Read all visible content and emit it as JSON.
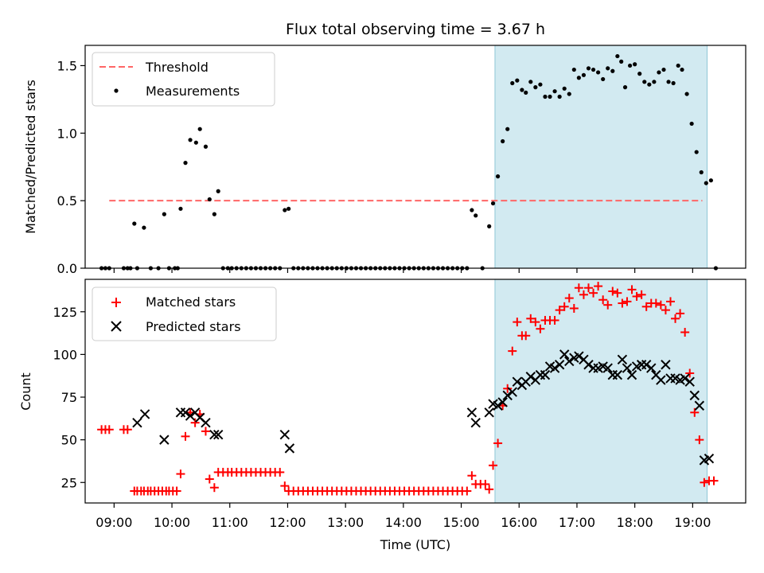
{
  "title": "Flux total observing time = 3.67 h",
  "colors": {
    "threshold": "#ff6666",
    "measurements": "#000000",
    "matched": "#ff0000",
    "predicted": "#000000",
    "shade": "#add8e6"
  },
  "x_ticks": [
    "09:00",
    "10:00",
    "11:00",
    "12:00",
    "13:00",
    "14:00",
    "15:00",
    "16:00",
    "17:00",
    "18:00",
    "19:00"
  ],
  "x_range": [
    "08:30",
    "19:55"
  ],
  "shaded_interval": [
    "15:35",
    "19:15"
  ],
  "top_panel": {
    "ylabel": "Matched/Predicted stars",
    "ylim": [
      0,
      1.65
    ],
    "yticks": [
      "0.0",
      "0.5",
      "1.0",
      "1.5"
    ],
    "legend": {
      "placement": "top-left",
      "threshold_label": "Threshold",
      "measurements_label": "Measurements"
    },
    "threshold": {
      "value": 0.5,
      "x_start": "08:55",
      "x_end": "19:10"
    },
    "measurements": [
      [
        "08:47",
        0
      ],
      [
        "08:51",
        0
      ],
      [
        "08:55",
        0
      ],
      [
        "09:10",
        0
      ],
      [
        "09:14",
        0
      ],
      [
        "09:17",
        0
      ],
      [
        "09:21",
        0.33
      ],
      [
        "09:24",
        0
      ],
      [
        "09:31",
        0.3
      ],
      [
        "09:38",
        0
      ],
      [
        "09:46",
        0
      ],
      [
        "09:52",
        0.4
      ],
      [
        "09:57",
        0
      ],
      [
        "10:03",
        0
      ],
      [
        "10:06",
        0
      ],
      [
        "10:09",
        0.44
      ],
      [
        "10:14",
        0.78
      ],
      [
        "10:19",
        0.95
      ],
      [
        "10:25",
        0.93
      ],
      [
        "10:29",
        1.03
      ],
      [
        "10:35",
        0.9
      ],
      [
        "10:39",
        0.51
      ],
      [
        "10:44",
        0.4
      ],
      [
        "10:48",
        0.57
      ],
      [
        "10:53",
        0
      ],
      [
        "10:58",
        0
      ],
      [
        "11:02",
        0
      ],
      [
        "11:07",
        0
      ],
      [
        "11:12",
        0
      ],
      [
        "11:17",
        0
      ],
      [
        "11:22",
        0
      ],
      [
        "11:27",
        0
      ],
      [
        "11:32",
        0
      ],
      [
        "11:37",
        0
      ],
      [
        "11:42",
        0
      ],
      [
        "11:47",
        0
      ],
      [
        "11:52",
        0
      ],
      [
        "11:57",
        0.43
      ],
      [
        "12:01",
        0.44
      ],
      [
        "12:06",
        0
      ],
      [
        "12:11",
        0
      ],
      [
        "12:16",
        0
      ],
      [
        "12:21",
        0
      ],
      [
        "12:26",
        0
      ],
      [
        "12:31",
        0
      ],
      [
        "12:36",
        0
      ],
      [
        "12:41",
        0
      ],
      [
        "12:46",
        0
      ],
      [
        "12:51",
        0
      ],
      [
        "12:56",
        0
      ],
      [
        "13:01",
        0
      ],
      [
        "13:06",
        0
      ],
      [
        "13:11",
        0
      ],
      [
        "13:16",
        0
      ],
      [
        "13:21",
        0
      ],
      [
        "13:26",
        0
      ],
      [
        "13:31",
        0
      ],
      [
        "13:36",
        0
      ],
      [
        "13:41",
        0
      ],
      [
        "13:46",
        0
      ],
      [
        "13:51",
        0
      ],
      [
        "13:56",
        0
      ],
      [
        "14:01",
        0
      ],
      [
        "14:06",
        0
      ],
      [
        "14:11",
        0
      ],
      [
        "14:16",
        0
      ],
      [
        "14:21",
        0
      ],
      [
        "14:26",
        0
      ],
      [
        "14:31",
        0
      ],
      [
        "14:36",
        0
      ],
      [
        "14:41",
        0
      ],
      [
        "14:46",
        0
      ],
      [
        "14:51",
        0
      ],
      [
        "14:56",
        0
      ],
      [
        "15:01",
        0
      ],
      [
        "15:06",
        0
      ],
      [
        "15:11",
        0.43
      ],
      [
        "15:15",
        0.39
      ],
      [
        "15:22",
        0
      ],
      [
        "15:29",
        0.31
      ],
      [
        "15:33",
        0.48
      ],
      [
        "15:38",
        0.68
      ],
      [
        "15:43",
        0.94
      ],
      [
        "15:48",
        1.03
      ],
      [
        "15:53",
        1.37
      ],
      [
        "15:58",
        1.39
      ],
      [
        "16:03",
        1.32
      ],
      [
        "16:07",
        1.3
      ],
      [
        "16:12",
        1.38
      ],
      [
        "16:17",
        1.34
      ],
      [
        "16:22",
        1.36
      ],
      [
        "16:27",
        1.27
      ],
      [
        "16:32",
        1.27
      ],
      [
        "16:37",
        1.31
      ],
      [
        "16:42",
        1.27
      ],
      [
        "16:47",
        1.33
      ],
      [
        "16:52",
        1.29
      ],
      [
        "16:57",
        1.47
      ],
      [
        "17:02",
        1.41
      ],
      [
        "17:07",
        1.43
      ],
      [
        "17:12",
        1.48
      ],
      [
        "17:17",
        1.47
      ],
      [
        "17:22",
        1.45
      ],
      [
        "17:27",
        1.4
      ],
      [
        "17:32",
        1.48
      ],
      [
        "17:37",
        1.46
      ],
      [
        "17:42",
        1.57
      ],
      [
        "17:46",
        1.53
      ],
      [
        "17:50",
        1.34
      ],
      [
        "17:55",
        1.5
      ],
      [
        "18:00",
        1.51
      ],
      [
        "18:05",
        1.44
      ],
      [
        "18:10",
        1.38
      ],
      [
        "18:15",
        1.36
      ],
      [
        "18:20",
        1.38
      ],
      [
        "18:25",
        1.45
      ],
      [
        "18:30",
        1.47
      ],
      [
        "18:35",
        1.38
      ],
      [
        "18:40",
        1.37
      ],
      [
        "18:45",
        1.5
      ],
      [
        "18:49",
        1.47
      ],
      [
        "18:54",
        1.29
      ],
      [
        "18:59",
        1.07
      ],
      [
        "19:04",
        0.86
      ],
      [
        "19:09",
        0.71
      ],
      [
        "19:14",
        0.63
      ],
      [
        "19:19",
        0.65
      ],
      [
        "19:24",
        0
      ]
    ]
  },
  "bottom_panel": {
    "ylabel": "Count",
    "xlabel": "Time (UTC)",
    "ylim": [
      13,
      144
    ],
    "yticks": [
      "25",
      "50",
      "75",
      "100",
      "125"
    ],
    "legend": {
      "placement": "top-left",
      "matched_label": "Matched stars",
      "predicted_label": "Predicted stars"
    },
    "matched": [
      [
        "08:47",
        56
      ],
      [
        "08:51",
        56
      ],
      [
        "08:55",
        56
      ],
      [
        "09:10",
        56
      ],
      [
        "09:14",
        56
      ],
      [
        "09:21",
        20
      ],
      [
        "09:24",
        20
      ],
      [
        "09:28",
        20
      ],
      [
        "09:31",
        20
      ],
      [
        "09:35",
        20
      ],
      [
        "09:38",
        20
      ],
      [
        "09:42",
        20
      ],
      [
        "09:46",
        20
      ],
      [
        "09:50",
        20
      ],
      [
        "09:54",
        20
      ],
      [
        "09:57",
        20
      ],
      [
        "10:01",
        20
      ],
      [
        "10:05",
        20
      ],
      [
        "10:09",
        30
      ],
      [
        "10:14",
        52
      ],
      [
        "10:19",
        66
      ],
      [
        "10:24",
        60
      ],
      [
        "10:29",
        65
      ],
      [
        "10:35",
        55
      ],
      [
        "10:39",
        27
      ],
      [
        "10:44",
        22
      ],
      [
        "10:48",
        31
      ],
      [
        "10:53",
        31
      ],
      [
        "10:58",
        31
      ],
      [
        "11:02",
        31
      ],
      [
        "11:07",
        31
      ],
      [
        "11:12",
        31
      ],
      [
        "11:17",
        31
      ],
      [
        "11:22",
        31
      ],
      [
        "11:27",
        31
      ],
      [
        "11:32",
        31
      ],
      [
        "11:37",
        31
      ],
      [
        "11:42",
        31
      ],
      [
        "11:47",
        31
      ],
      [
        "11:52",
        31
      ],
      [
        "11:57",
        23
      ],
      [
        "12:01",
        20
      ],
      [
        "12:06",
        20
      ],
      [
        "12:11",
        20
      ],
      [
        "12:16",
        20
      ],
      [
        "12:21",
        20
      ],
      [
        "12:26",
        20
      ],
      [
        "12:31",
        20
      ],
      [
        "12:36",
        20
      ],
      [
        "12:41",
        20
      ],
      [
        "12:46",
        20
      ],
      [
        "12:51",
        20
      ],
      [
        "12:56",
        20
      ],
      [
        "13:01",
        20
      ],
      [
        "13:06",
        20
      ],
      [
        "13:11",
        20
      ],
      [
        "13:16",
        20
      ],
      [
        "13:21",
        20
      ],
      [
        "13:26",
        20
      ],
      [
        "13:31",
        20
      ],
      [
        "13:36",
        20
      ],
      [
        "13:41",
        20
      ],
      [
        "13:46",
        20
      ],
      [
        "13:51",
        20
      ],
      [
        "13:56",
        20
      ],
      [
        "14:01",
        20
      ],
      [
        "14:06",
        20
      ],
      [
        "14:11",
        20
      ],
      [
        "14:16",
        20
      ],
      [
        "14:21",
        20
      ],
      [
        "14:26",
        20
      ],
      [
        "14:31",
        20
      ],
      [
        "14:36",
        20
      ],
      [
        "14:41",
        20
      ],
      [
        "14:46",
        20
      ],
      [
        "14:51",
        20
      ],
      [
        "14:56",
        20
      ],
      [
        "15:01",
        20
      ],
      [
        "15:06",
        20
      ],
      [
        "15:11",
        29
      ],
      [
        "15:15",
        24
      ],
      [
        "15:20",
        24
      ],
      [
        "15:25",
        24
      ],
      [
        "15:29",
        21
      ],
      [
        "15:33",
        35
      ],
      [
        "15:38",
        48
      ],
      [
        "15:43",
        70
      ],
      [
        "15:48",
        80
      ],
      [
        "15:53",
        102
      ],
      [
        "15:58",
        119
      ],
      [
        "16:03",
        111
      ],
      [
        "16:07",
        111
      ],
      [
        "16:12",
        121
      ],
      [
        "16:17",
        119
      ],
      [
        "16:22",
        115
      ],
      [
        "16:27",
        120
      ],
      [
        "16:32",
        120
      ],
      [
        "16:37",
        120
      ],
      [
        "16:42",
        126
      ],
      [
        "16:47",
        128
      ],
      [
        "16:52",
        133
      ],
      [
        "16:57",
        127
      ],
      [
        "17:02",
        139
      ],
      [
        "17:07",
        135
      ],
      [
        "17:12",
        139
      ],
      [
        "17:17",
        136
      ],
      [
        "17:22",
        140
      ],
      [
        "17:27",
        132
      ],
      [
        "17:32",
        129
      ],
      [
        "17:37",
        137
      ],
      [
        "17:42",
        136
      ],
      [
        "17:47",
        130
      ],
      [
        "17:52",
        131
      ],
      [
        "17:57",
        138
      ],
      [
        "18:02",
        134
      ],
      [
        "18:07",
        135
      ],
      [
        "18:12",
        128
      ],
      [
        "18:17",
        130
      ],
      [
        "18:22",
        130
      ],
      [
        "18:27",
        129
      ],
      [
        "18:32",
        126
      ],
      [
        "18:37",
        131
      ],
      [
        "18:42",
        121
      ],
      [
        "18:47",
        124
      ],
      [
        "18:52",
        113
      ],
      [
        "18:57",
        89
      ],
      [
        "19:02",
        66
      ],
      [
        "19:07",
        50
      ],
      [
        "19:12",
        25
      ],
      [
        "19:17",
        26
      ],
      [
        "19:22",
        26
      ]
    ],
    "predicted": [
      [
        "09:24",
        60
      ],
      [
        "09:32",
        65
      ],
      [
        "09:52",
        50
      ],
      [
        "10:09",
        66
      ],
      [
        "10:14",
        66
      ],
      [
        "10:19",
        64
      ],
      [
        "10:24",
        66
      ],
      [
        "10:29",
        63
      ],
      [
        "10:35",
        60
      ],
      [
        "10:44",
        53
      ],
      [
        "10:48",
        53
      ],
      [
        "11:57",
        53
      ],
      [
        "12:02",
        45
      ],
      [
        "15:11",
        66
      ],
      [
        "15:15",
        60
      ],
      [
        "15:29",
        66
      ],
      [
        "15:33",
        71
      ],
      [
        "15:38",
        70
      ],
      [
        "15:43",
        72
      ],
      [
        "15:48",
        76
      ],
      [
        "15:53",
        78
      ],
      [
        "15:58",
        84
      ],
      [
        "16:03",
        82
      ],
      [
        "16:07",
        84
      ],
      [
        "16:12",
        87
      ],
      [
        "16:17",
        85
      ],
      [
        "16:22",
        88
      ],
      [
        "16:27",
        88
      ],
      [
        "16:32",
        93
      ],
      [
        "16:37",
        92
      ],
      [
        "16:42",
        94
      ],
      [
        "16:47",
        100
      ],
      [
        "16:52",
        96
      ],
      [
        "16:57",
        98
      ],
      [
        "17:02",
        99
      ],
      [
        "17:07",
        97
      ],
      [
        "17:12",
        94
      ],
      [
        "17:17",
        92
      ],
      [
        "17:22",
        92
      ],
      [
        "17:27",
        93
      ],
      [
        "17:32",
        92
      ],
      [
        "17:37",
        88
      ],
      [
        "17:42",
        88
      ],
      [
        "17:47",
        97
      ],
      [
        "17:52",
        92
      ],
      [
        "17:57",
        88
      ],
      [
        "18:02",
        93
      ],
      [
        "18:07",
        94
      ],
      [
        "18:12",
        94
      ],
      [
        "18:17",
        92
      ],
      [
        "18:22",
        88
      ],
      [
        "18:27",
        85
      ],
      [
        "18:32",
        94
      ],
      [
        "18:37",
        86
      ],
      [
        "18:42",
        86
      ],
      [
        "18:47",
        85
      ],
      [
        "18:52",
        86
      ],
      [
        "18:57",
        84
      ],
      [
        "19:02",
        76
      ],
      [
        "19:07",
        70
      ],
      [
        "19:12",
        38
      ],
      [
        "19:17",
        39
      ]
    ]
  }
}
